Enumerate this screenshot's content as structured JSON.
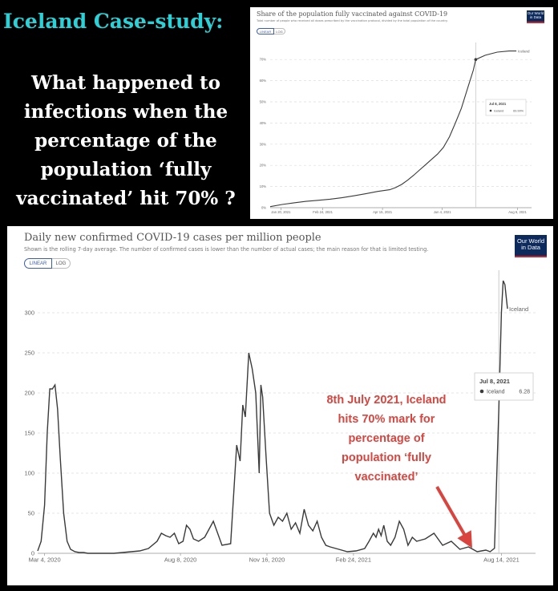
{
  "headline": "Iceland Case-study:",
  "question_lines": [
    "What happened to",
    "infections when the",
    "percentage of the",
    "population ‘fully",
    "vaccinated’ hit 70% ?"
  ],
  "colors": {
    "accent": "#2bd1d6",
    "line": "#3a3a3a",
    "annotation": "#d9453e",
    "logo_bg": "#0d2a5c",
    "logo_bar": "#c8242b"
  },
  "logo": {
    "line1": "Our World",
    "line2": "in Data"
  },
  "vacc_panel": {
    "title": "Share of the population fully vaccinated against COVID-19",
    "subtitle": "Total number of people who received all doses prescribed by the vaccination protocol, divided by the total population of the country.",
    "toggle": {
      "linear": "LINEAR",
      "log": "LOG"
    },
    "tooltip": {
      "date": "Jul 8, 2021",
      "series": "Iceland",
      "value": "69.99%"
    }
  },
  "cases_panel": {
    "title": "Daily new confirmed COVID-19 cases per million people",
    "subtitle": "Shown is the rolling 7-day average. The number of confirmed cases is lower than the number of actual cases; the main reason for that is limited testing.",
    "toggle": {
      "linear": "LINEAR",
      "log": "LOG"
    },
    "tooltip": {
      "date": "Jul 8, 2021",
      "series": "Iceland",
      "value": "6.28"
    },
    "annotation_lines": [
      "8th July 2021, Iceland",
      "hits 70% mark for",
      "percentage of",
      "population ‘fully",
      "vaccinated’"
    ]
  },
  "chart_data": [
    {
      "type": "line",
      "title": "Share of the population fully vaccinated against COVID-19",
      "series_label": "Iceland",
      "y_ticks": [
        0,
        10,
        20,
        30,
        40,
        50,
        60,
        70
      ],
      "y_tick_labels": [
        "0%",
        "10%",
        "20%",
        "30%",
        "40%",
        "50%",
        "60%",
        "70%"
      ],
      "ylim": [
        0,
        75
      ],
      "x_ticks": [
        "Jan 20, 2021",
        "Feb 24, 2021",
        "Apr 15, 2021",
        "Jun 4, 2021",
        "Aug 6, 2021"
      ],
      "x_tick_pos": [
        9,
        44,
        94,
        144,
        207
      ],
      "x_range": [
        0,
        212
      ],
      "x": [
        0,
        10,
        20,
        30,
        40,
        50,
        60,
        70,
        80,
        90,
        100,
        105,
        110,
        115,
        120,
        125,
        130,
        135,
        140,
        145,
        150,
        155,
        160,
        165,
        170,
        172,
        180,
        190,
        200,
        206
      ],
      "y": [
        0.5,
        1.5,
        2.3,
        3,
        3.5,
        4,
        4.7,
        5.6,
        6.6,
        7.7,
        8.5,
        9.5,
        11,
        13,
        15.3,
        17.8,
        20.3,
        22.8,
        25.3,
        28.5,
        33.5,
        40,
        47,
        56,
        65,
        69.99,
        72,
        73.5,
        74,
        74
      ],
      "grid": true
    },
    {
      "type": "line",
      "title": "Daily new confirmed COVID-19 cases per million people",
      "series_label": "Iceland",
      "y_ticks": [
        0,
        50,
        100,
        150,
        200,
        250,
        300
      ],
      "ylim": [
        0,
        345
      ],
      "x_ticks": [
        "Mar 4, 2020",
        "Aug 8, 2020",
        "Nov 16, 2020",
        "Feb 24, 2021",
        "Aug 14, 2021"
      ],
      "x_tick_pos": [
        0,
        157,
        257,
        357,
        528
      ],
      "x_range": [
        -8,
        535
      ],
      "x": [
        -8,
        -4,
        0,
        3,
        6,
        9,
        12,
        15,
        18,
        22,
        26,
        30,
        35,
        40,
        45,
        50,
        55,
        60,
        70,
        80,
        90,
        100,
        110,
        120,
        130,
        135,
        140,
        145,
        150,
        155,
        160,
        164,
        168,
        172,
        178,
        185,
        195,
        205,
        215,
        222,
        226,
        229,
        232,
        236,
        240,
        244,
        248,
        250,
        252,
        256,
        260,
        265,
        270,
        275,
        280,
        285,
        290,
        295,
        300,
        305,
        310,
        315,
        320,
        325,
        330,
        340,
        350,
        360,
        370,
        375,
        380,
        383,
        386,
        389,
        392,
        396,
        400,
        405,
        410,
        415,
        420,
        425,
        430,
        440,
        450,
        460,
        470,
        480,
        490,
        500,
        505,
        510,
        515,
        520,
        525,
        528,
        530,
        532,
        534,
        535
      ],
      "y": [
        3,
        15,
        60,
        150,
        205,
        205,
        210,
        180,
        120,
        50,
        15,
        5,
        2,
        1,
        1,
        0,
        0,
        0,
        0,
        0,
        1,
        2,
        3,
        6,
        15,
        25,
        22,
        20,
        25,
        12,
        15,
        35,
        30,
        18,
        15,
        20,
        40,
        10,
        12,
        135,
        115,
        185,
        170,
        250,
        230,
        200,
        100,
        210,
        195,
        120,
        50,
        35,
        45,
        40,
        50,
        30,
        38,
        25,
        55,
        35,
        28,
        40,
        20,
        10,
        8,
        5,
        2,
        3,
        6,
        15,
        25,
        20,
        30,
        22,
        35,
        15,
        10,
        20,
        40,
        30,
        10,
        20,
        15,
        18,
        25,
        10,
        15,
        5,
        8,
        2,
        3,
        4,
        2,
        6.28,
        180,
        300,
        340,
        335,
        315,
        305
      ],
      "annotation": "8th July 2021, Iceland hits 70% mark for percentage of population ‘fully vaccinated’",
      "grid": true
    }
  ]
}
